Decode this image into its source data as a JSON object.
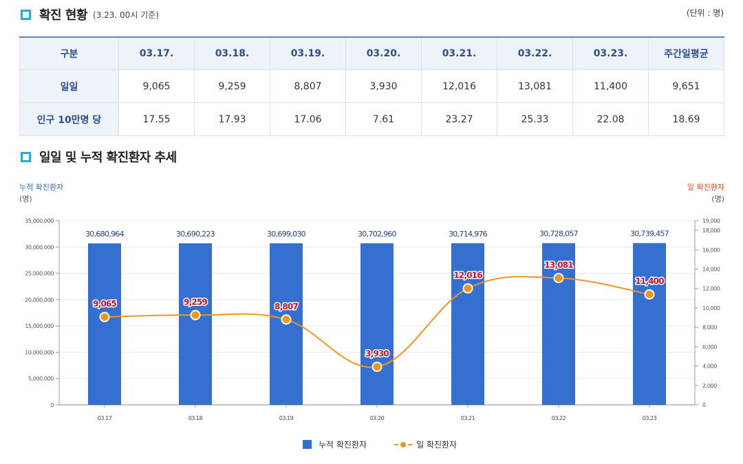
{
  "section1": {
    "title": "확진 현황",
    "subtitle": "(3.23. 00시 기준)",
    "unit": "(단위 : 명)"
  },
  "table": {
    "headers": [
      "구분",
      "03.17.",
      "03.18.",
      "03.19.",
      "03.20.",
      "03.21.",
      "03.22.",
      "03.23.",
      "주간일평균"
    ],
    "rows": [
      [
        "일일",
        "9,065",
        "9,259",
        "8,807",
        "3,930",
        "12,016",
        "13,081",
        "11,400",
        "9,651"
      ],
      [
        "인구 10만명 당",
        "17.55",
        "17.93",
        "17.06",
        "7.61",
        "23.27",
        "25.33",
        "22.08",
        "18.69"
      ]
    ]
  },
  "section2": {
    "title": "일일 및 누적 확진환자 추세"
  },
  "axis_labels": {
    "left": "누적 확진환자",
    "left_unit": "(명)",
    "right": "일 확진환자",
    "right_unit": "(명)"
  },
  "colors": {
    "bar": "#3570d0",
    "line": "#f0961e",
    "left_axis_label": "#2f6ec4",
    "right_axis_label": "#d4572a",
    "bar_label": "#1f3f80",
    "line_label": "#c8102e"
  },
  "chart_data": {
    "type": "bar",
    "categories": [
      "03.17",
      "03.18",
      "03.19",
      "03.20",
      "03.21",
      "03.22",
      "03.23"
    ],
    "series": [
      {
        "name": "누적 확진환자",
        "type": "bar",
        "axis": "left",
        "values": [
          30680964,
          30690223,
          30699030,
          30702960,
          30714976,
          30728057,
          30739457
        ],
        "labels": [
          "30,680,964",
          "30,690,223",
          "30,699,030",
          "30,702,960",
          "30,714,976",
          "30,728,057",
          "30,739,457"
        ]
      },
      {
        "name": "일 확진환자",
        "type": "line",
        "axis": "right",
        "values": [
          9065,
          9259,
          8807,
          3930,
          12016,
          13081,
          11400
        ],
        "labels": [
          "9,065",
          "9,259",
          "8,807",
          "3,930",
          "12,016",
          "13,081",
          "11,400"
        ]
      }
    ],
    "left_axis": {
      "ylim": [
        0,
        35000000
      ],
      "ticks": [
        0,
        5000000,
        10000000,
        15000000,
        20000000,
        25000000,
        30000000,
        35000000
      ],
      "tick_labels": [
        "0",
        "5,000,000",
        "10,000,000",
        "15,000,000",
        "20,000,000",
        "25,000,000",
        "30,000,000",
        "35,000,000"
      ]
    },
    "right_axis": {
      "ylim": [
        0,
        19000
      ],
      "ticks": [
        0,
        2000,
        4000,
        6000,
        8000,
        10000,
        12000,
        14000,
        16000,
        18000,
        19000
      ],
      "tick_labels": [
        "0",
        "2,000",
        "4,000",
        "6,000",
        "8,000",
        "10,000",
        "12,000",
        "14,000",
        "16,000",
        "18,000",
        "19,000"
      ]
    },
    "grid": true,
    "legend": "bottom"
  }
}
